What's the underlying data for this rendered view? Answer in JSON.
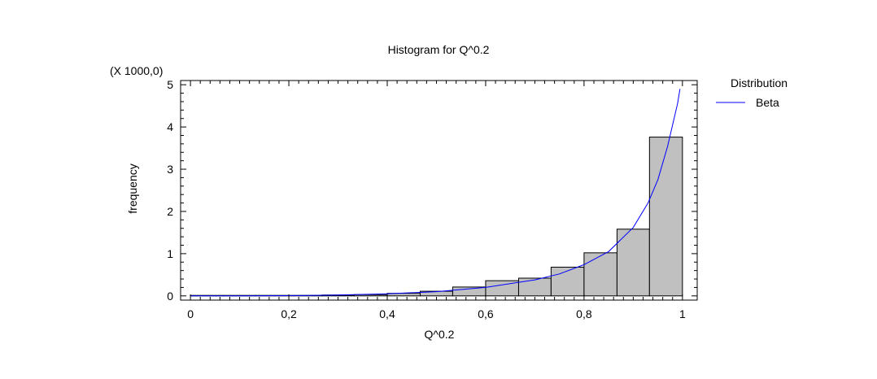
{
  "chart_data": {
    "type": "bar",
    "title": "Histogram for Q^0.2",
    "xlabel": "Q^0.2",
    "ylabel": "frequency",
    "y_multiplier": "(X 1000,0)",
    "xlim": [
      -0.02,
      1.03
    ],
    "ylim": [
      -0.1,
      5.1
    ],
    "x_ticks": [
      "0",
      "0,2",
      "0,4",
      "0,6",
      "0,8",
      "1"
    ],
    "y_ticks": [
      "0",
      "1",
      "2",
      "3",
      "4",
      "5"
    ],
    "bins": [
      {
        "x0": 0.0,
        "x1": 0.067,
        "value": 0.0
      },
      {
        "x0": 0.067,
        "x1": 0.133,
        "value": 0.0
      },
      {
        "x0": 0.133,
        "x1": 0.2,
        "value": 0.0
      },
      {
        "x0": 0.2,
        "x1": 0.267,
        "value": 0.01
      },
      {
        "x0": 0.267,
        "x1": 0.333,
        "value": 0.02
      },
      {
        "x0": 0.333,
        "x1": 0.4,
        "value": 0.03
      },
      {
        "x0": 0.4,
        "x1": 0.467,
        "value": 0.06
      },
      {
        "x0": 0.467,
        "x1": 0.533,
        "value": 0.11
      },
      {
        "x0": 0.533,
        "x1": 0.6,
        "value": 0.21
      },
      {
        "x0": 0.6,
        "x1": 0.667,
        "value": 0.36
      },
      {
        "x0": 0.667,
        "x1": 0.733,
        "value": 0.42
      },
      {
        "x0": 0.733,
        "x1": 0.8,
        "value": 0.68
      },
      {
        "x0": 0.8,
        "x1": 0.867,
        "value": 1.02
      },
      {
        "x0": 0.867,
        "x1": 0.933,
        "value": 1.58
      },
      {
        "x0": 0.933,
        "x1": 1.0,
        "value": 3.76
      }
    ],
    "series": [
      {
        "name": "Beta",
        "type": "line",
        "color": "#0000ff",
        "x": [
          0.0,
          0.1,
          0.2,
          0.3,
          0.4,
          0.5,
          0.6,
          0.7,
          0.75,
          0.8,
          0.85,
          0.9,
          0.93,
          0.95,
          0.97,
          0.98,
          0.99,
          0.995
        ],
        "y": [
          0.0,
          0.0,
          0.005,
          0.02,
          0.05,
          0.1,
          0.2,
          0.38,
          0.52,
          0.74,
          1.05,
          1.62,
          2.2,
          2.75,
          3.55,
          4.05,
          4.55,
          4.9
        ]
      }
    ],
    "legend": {
      "title": "Distribution",
      "position": "right",
      "entries": [
        {
          "label": "Beta",
          "color": "#0000ff"
        }
      ]
    },
    "bar_color": "#c0c0c0"
  }
}
